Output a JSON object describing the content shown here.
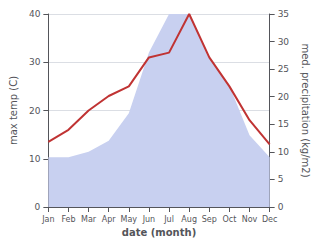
{
  "chart_data": {
    "type": "line",
    "xlabel": "date (month)",
    "ylabel": "max temp (C)",
    "y2label": "med. precipitation (kg/m2)",
    "categories": [
      "Jan",
      "Feb",
      "Mar",
      "Apr",
      "May",
      "Jun",
      "Jul",
      "Aug",
      "Sep",
      "Oct",
      "Nov",
      "Dec"
    ],
    "series": [
      {
        "type": "area",
        "axis": "y2",
        "color": "#c8d0f0",
        "values": [
          9.0,
          9.0,
          10.0,
          12.0,
          17.0,
          28.0,
          35.0,
          35.0,
          27.0,
          22.0,
          13.0,
          9.0
        ]
      },
      {
        "type": "line",
        "color": "#c03333",
        "values": [
          13.5,
          16.0,
          20.0,
          23.0,
          25.0,
          31.0,
          32.0,
          40.0,
          31.0,
          25.0,
          18.0,
          13.0
        ]
      }
    ],
    "ylim": [
      0,
      40
    ],
    "yticks": [
      0,
      10,
      20,
      30,
      40
    ],
    "y2lim": [
      0,
      35
    ],
    "y2ticks": [
      0,
      5,
      10,
      15,
      20,
      25,
      30,
      35
    ],
    "grid": true
  }
}
